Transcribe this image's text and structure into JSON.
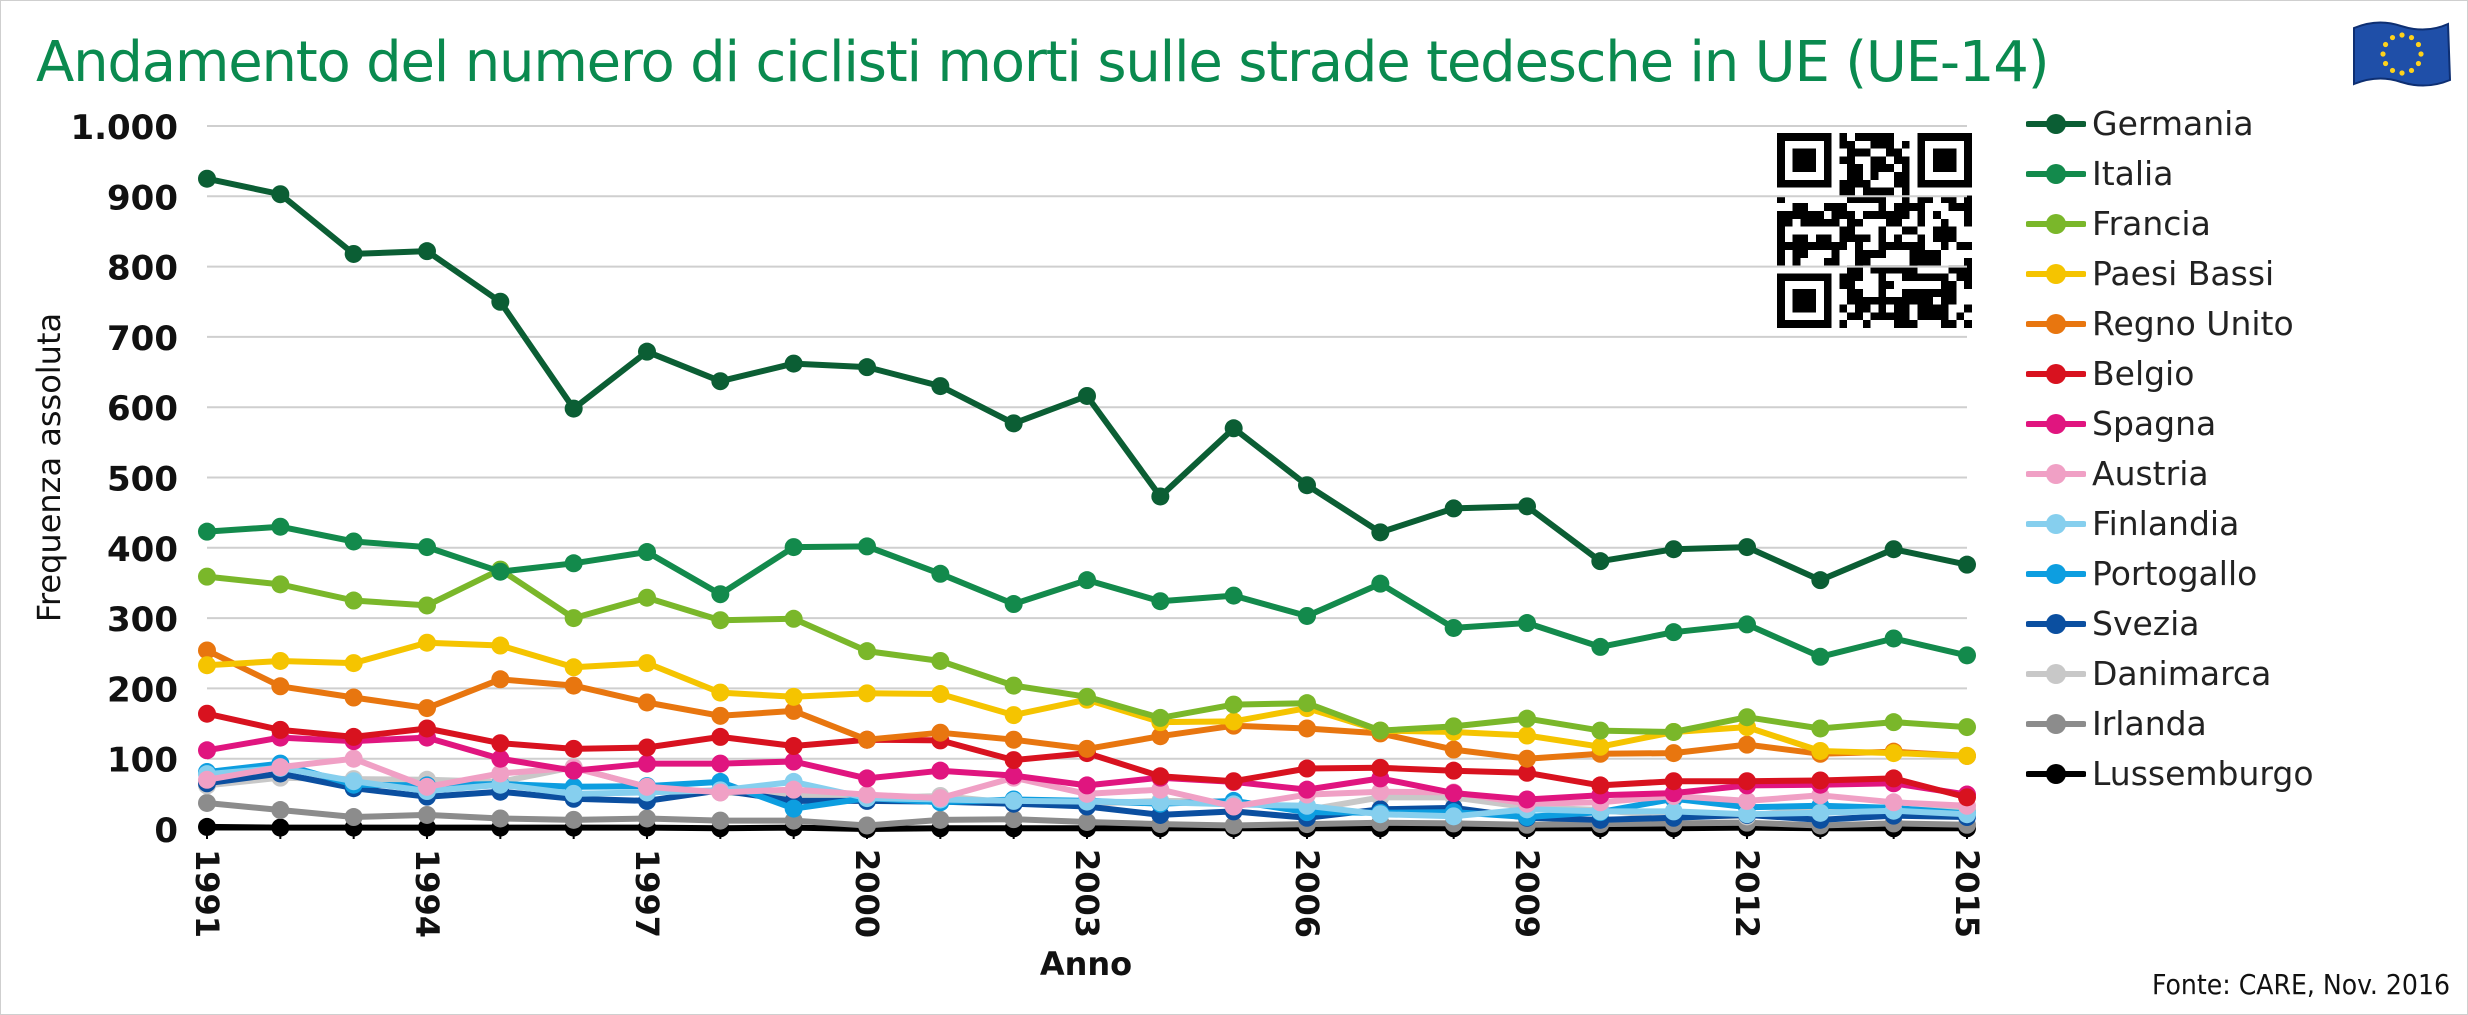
{
  "title": "Andamento del numero di ciclisti morti sulle strade tedesche in UE (UE-14)",
  "source": "Fonte: CARE, Nov. 2016",
  "colors": {
    "title": "#0a8a4f",
    "grid": "#cfcfcf",
    "axis": "#000000"
  },
  "icons": {
    "flag": "eu-flag-icon",
    "qr": "qr-code-icon"
  },
  "chart_data": {
    "type": "line",
    "title": "Andamento del numero di ciclisti morti sulle strade tedesche in UE (UE-14)",
    "xlabel": "Anno",
    "ylabel": "Frequenza assoluta",
    "ylim": [
      0,
      1000
    ],
    "yticks": [
      0,
      100,
      200,
      300,
      400,
      500,
      600,
      700,
      800,
      900,
      1000
    ],
    "ytick_labels": [
      "0",
      "100",
      "200",
      "300",
      "400",
      "500",
      "600",
      "700",
      "800",
      "900",
      "1.000"
    ],
    "xticks": [
      1991,
      1994,
      1997,
      2000,
      2003,
      2006,
      2009,
      2012,
      2015
    ],
    "xtick_labels": [
      "1991",
      "1994",
      "1997",
      "2000",
      "2003",
      "2006",
      "2009",
      "2012",
      "2015"
    ],
    "x": [
      1991,
      1992,
      1993,
      1994,
      1995,
      1996,
      1997,
      1998,
      1999,
      2000,
      2001,
      2002,
      2003,
      2004,
      2005,
      2006,
      2007,
      2008,
      2009,
      2010,
      2011,
      2012,
      2013,
      2014,
      2015
    ],
    "grid": true,
    "legend_position": "right",
    "series": [
      {
        "name": "Germania",
        "color": "#0b5e34",
        "values": [
          925,
          903,
          818,
          822,
          750,
          598,
          679,
          637,
          662,
          657,
          630,
          577,
          616,
          473,
          570,
          489,
          422,
          456,
          459,
          381,
          398,
          401,
          354,
          398,
          376
        ]
      },
      {
        "name": "Italia",
        "color": "#138a4c",
        "values": [
          423,
          430,
          409,
          401,
          366,
          378,
          394,
          334,
          401,
          402,
          363,
          320,
          354,
          324,
          332,
          303,
          349,
          286,
          293,
          259,
          280,
          291,
          245,
          271,
          247
        ]
      },
      {
        "name": "Francia",
        "color": "#7ab72a",
        "values": [
          359,
          348,
          325,
          318,
          369,
          300,
          329,
          297,
          299,
          253,
          239,
          204,
          188,
          158,
          177,
          179,
          140,
          146,
          157,
          140,
          138,
          159,
          143,
          152,
          145
        ]
      },
      {
        "name": "Paesi Bassi",
        "color": "#f5c400",
        "values": [
          233,
          239,
          236,
          265,
          261,
          230,
          236,
          194,
          188,
          193,
          192,
          162,
          184,
          152,
          153,
          172,
          140,
          138,
          133,
          117,
          138,
          145,
          111,
          108,
          104
        ]
      },
      {
        "name": "Regno Unito",
        "color": "#e8760f",
        "values": [
          254,
          203,
          187,
          172,
          213,
          204,
          180,
          161,
          168,
          127,
          137,
          127,
          114,
          132,
          147,
          143,
          136,
          113,
          100,
          107,
          108,
          120,
          107,
          110,
          104
        ]
      },
      {
        "name": "Belgio",
        "color": "#d8121f",
        "values": [
          164,
          141,
          131,
          143,
          122,
          114,
          116,
          131,
          118,
          127,
          126,
          98,
          108,
          75,
          68,
          86,
          87,
          83,
          80,
          62,
          68,
          68,
          69,
          72,
          45
        ]
      },
      {
        "name": "Spagna",
        "color": "#e0157f",
        "values": [
          112,
          130,
          125,
          130,
          100,
          83,
          93,
          93,
          96,
          72,
          83,
          76,
          62,
          73,
          67,
          56,
          72,
          51,
          42,
          48,
          51,
          62,
          63,
          65,
          49
        ]
      },
      {
        "name": "Austria",
        "color": "#f0a0c5",
        "values": [
          70,
          88,
          100,
          60,
          79,
          87,
          60,
          52,
          56,
          49,
          44,
          73,
          50,
          56,
          32,
          49,
          53,
          52,
          36,
          38,
          47,
          40,
          48,
          38,
          33
        ]
      },
      {
        "name": "Finlandia",
        "color": "#86cfee",
        "values": [
          78,
          87,
          68,
          54,
          63,
          50,
          52,
          55,
          67,
          44,
          42,
          40,
          39,
          38,
          35,
          33,
          21,
          18,
          28,
          25,
          25,
          21,
          23,
          26,
          21
        ]
      },
      {
        "name": "Portogallo",
        "color": "#0d9ee0",
        "values": [
          81,
          93,
          63,
          62,
          64,
          60,
          61,
          67,
          29,
          44,
          38,
          42,
          40,
          36,
          40,
          24,
          23,
          24,
          17,
          24,
          43,
          31,
          33,
          30,
          22
        ]
      },
      {
        "name": "Svezia",
        "color": "#0b4fa0",
        "values": [
          65,
          79,
          58,
          46,
          53,
          43,
          40,
          55,
          40,
          40,
          39,
          36,
          32,
          20,
          25,
          16,
          28,
          30,
          16,
          13,
          16,
          20,
          13,
          19,
          17
        ]
      },
      {
        "name": "Danimarca",
        "color": "#c8c8c8",
        "values": [
          62,
          73,
          71,
          70,
          67,
          88,
          59,
          52,
          48,
          44,
          47,
          37,
          36,
          40,
          39,
          27,
          45,
          45,
          31,
          27,
          17,
          18,
          31,
          27,
          28
        ]
      },
      {
        "name": "Irlanda",
        "color": "#8c8c8c",
        "values": [
          37,
          27,
          17,
          20,
          15,
          13,
          15,
          12,
          12,
          5,
          13,
          14,
          10,
          7,
          5,
          7,
          9,
          8,
          6,
          7,
          8,
          9,
          5,
          8,
          6
        ]
      },
      {
        "name": "Lussemburgo",
        "color": "#000000",
        "values": [
          3,
          2,
          2,
          2,
          2,
          2,
          2,
          1,
          2,
          0,
          1,
          1,
          1,
          1,
          1,
          1,
          1,
          1,
          1,
          1,
          1,
          2,
          1,
          1,
          1
        ]
      }
    ]
  }
}
